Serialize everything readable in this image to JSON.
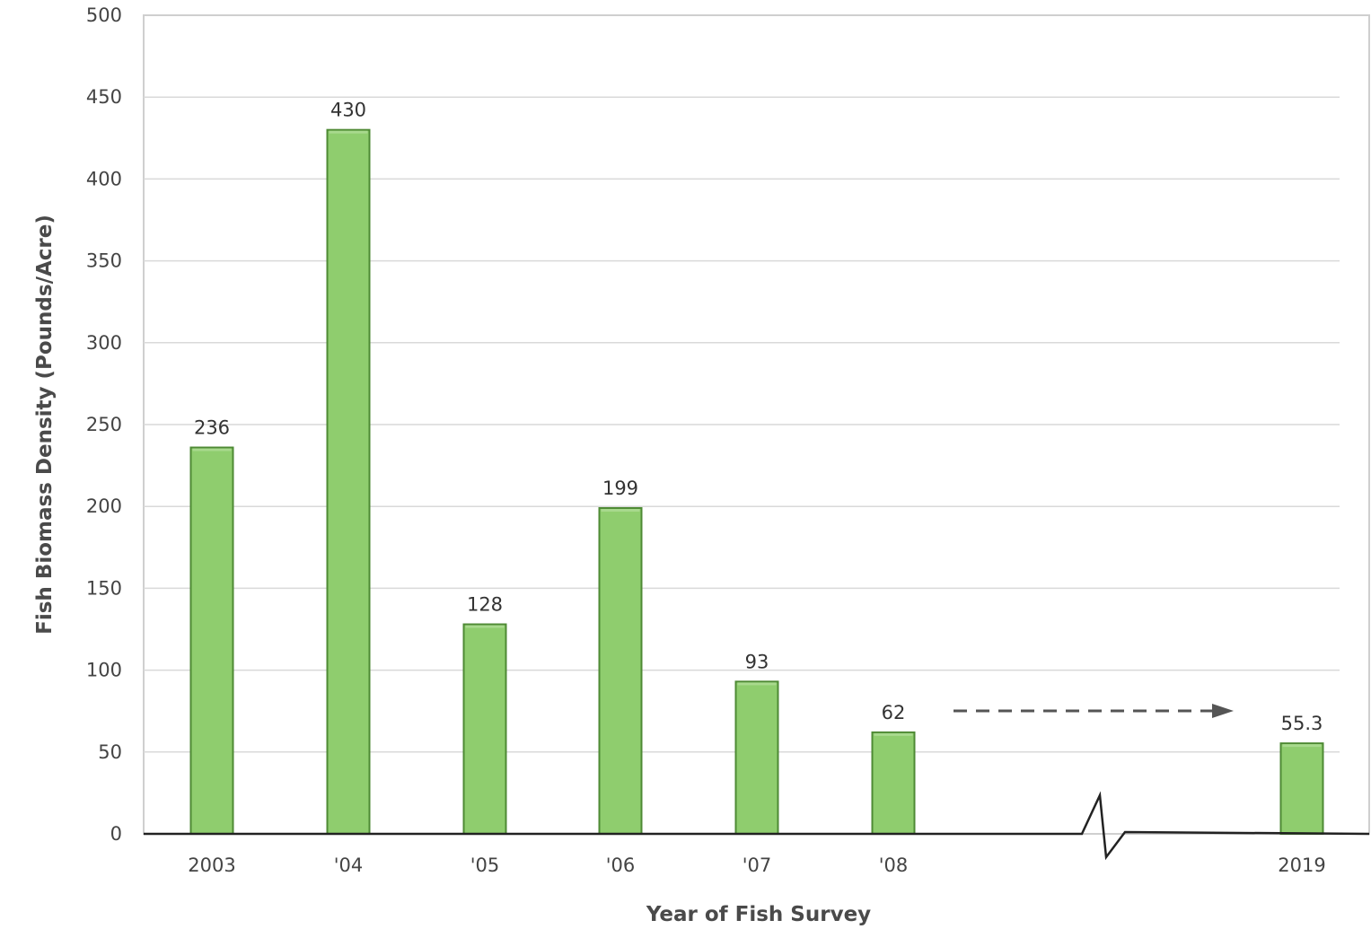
{
  "chart_data": {
    "type": "bar",
    "categories": [
      "2003",
      "'04",
      "'05",
      "'06",
      "'07",
      "'08",
      "2019"
    ],
    "values": [
      236,
      430,
      128,
      199,
      93,
      62,
      55.3
    ],
    "value_labels": [
      "236",
      "430",
      "128",
      "199",
      "93",
      "62",
      "55.3"
    ],
    "title": "",
    "xlabel": "Year of Fish Survey",
    "ylabel": "Fish Biomass Density (Pounds/Acre)",
    "ylim": [
      0,
      500
    ],
    "yticks": [
      0,
      50,
      100,
      150,
      200,
      250,
      300,
      350,
      400,
      450,
      500
    ],
    "grid": true,
    "legend": "none",
    "axis_break": "between '08 and 2019",
    "annotations": [
      "dashed arrow from '08 to 2019"
    ],
    "colors": {
      "bar_fill": "#8fcd6e",
      "bar_edge": "#4e8a34",
      "gridline": "#d9d9d9",
      "axis": "#222222"
    }
  }
}
